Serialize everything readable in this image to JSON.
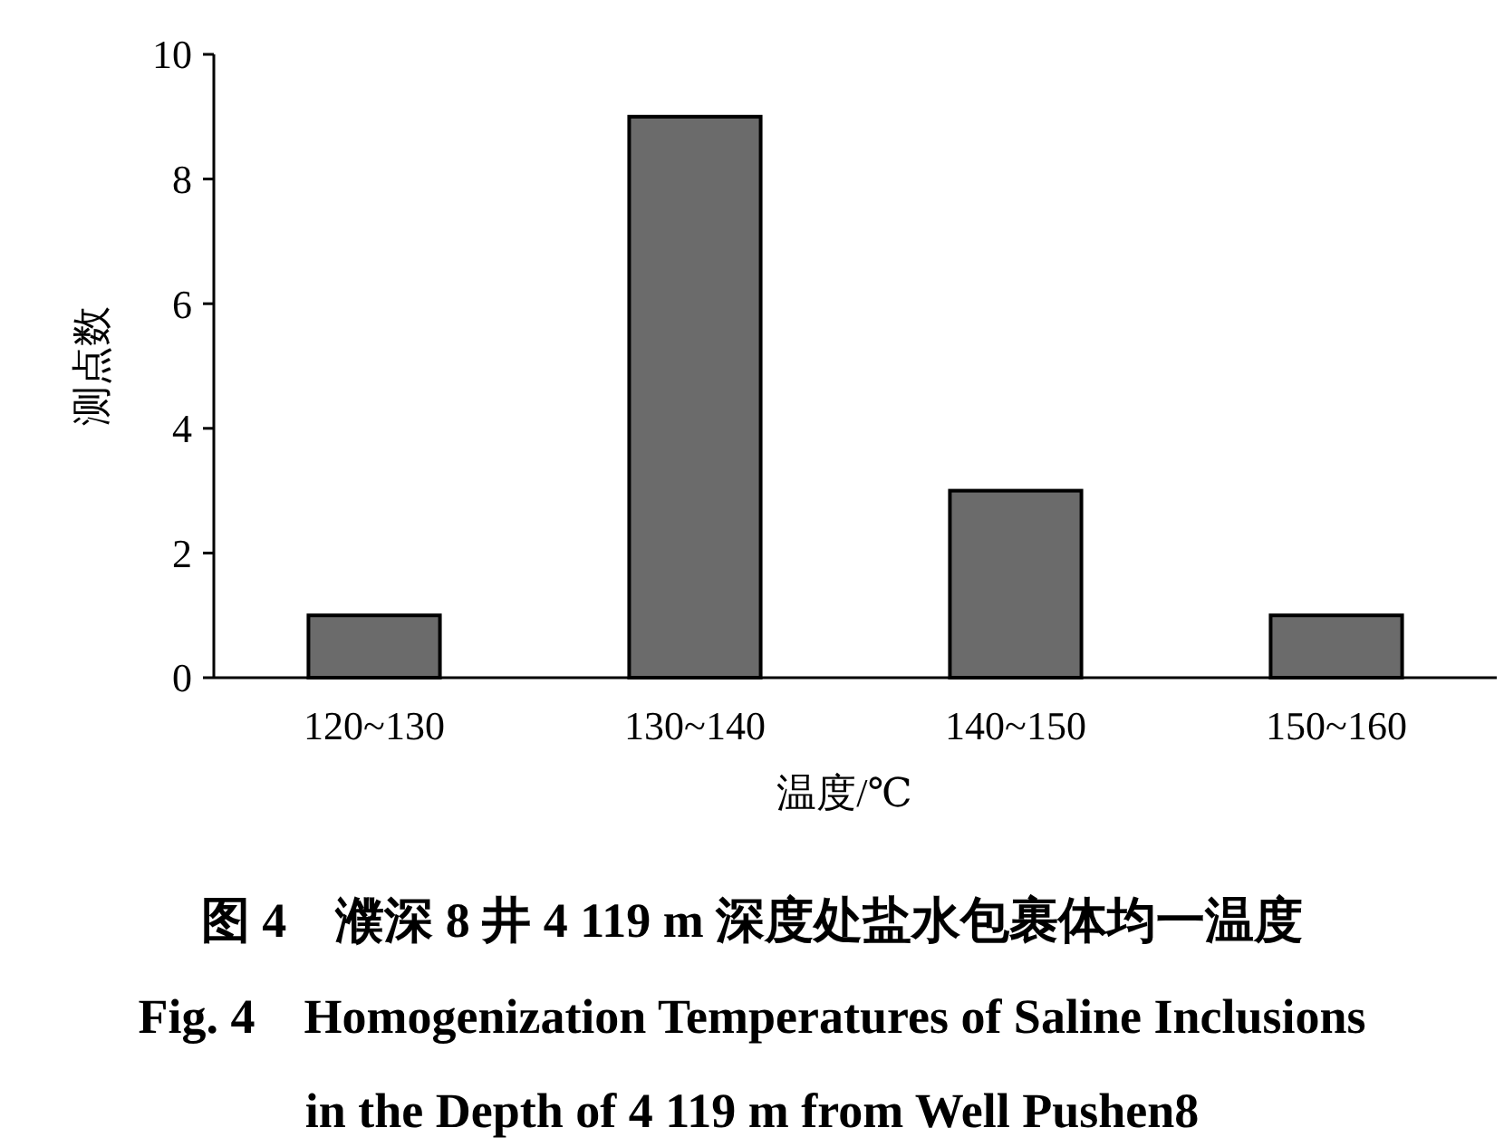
{
  "chart_data": {
    "type": "bar",
    "title": "图 4　濮深 8 井 4 119 m 深度处盐水包裹体均一温度",
    "subtitle": "Fig. 4　Homogenization Temperatures of Saline Inclusions\nin the Depth of 4 119 m from Well Pushen8",
    "xlabel": "温度/℃",
    "ylabel": "测点数",
    "categories": [
      "120~130",
      "130~140",
      "140~150",
      "150~160"
    ],
    "values": [
      1,
      9,
      3,
      1
    ],
    "color": "#6b6b6b",
    "ylim": [
      0,
      10
    ],
    "yticks": [
      0,
      2,
      4,
      6,
      8,
      10
    ],
    "grid": false
  }
}
